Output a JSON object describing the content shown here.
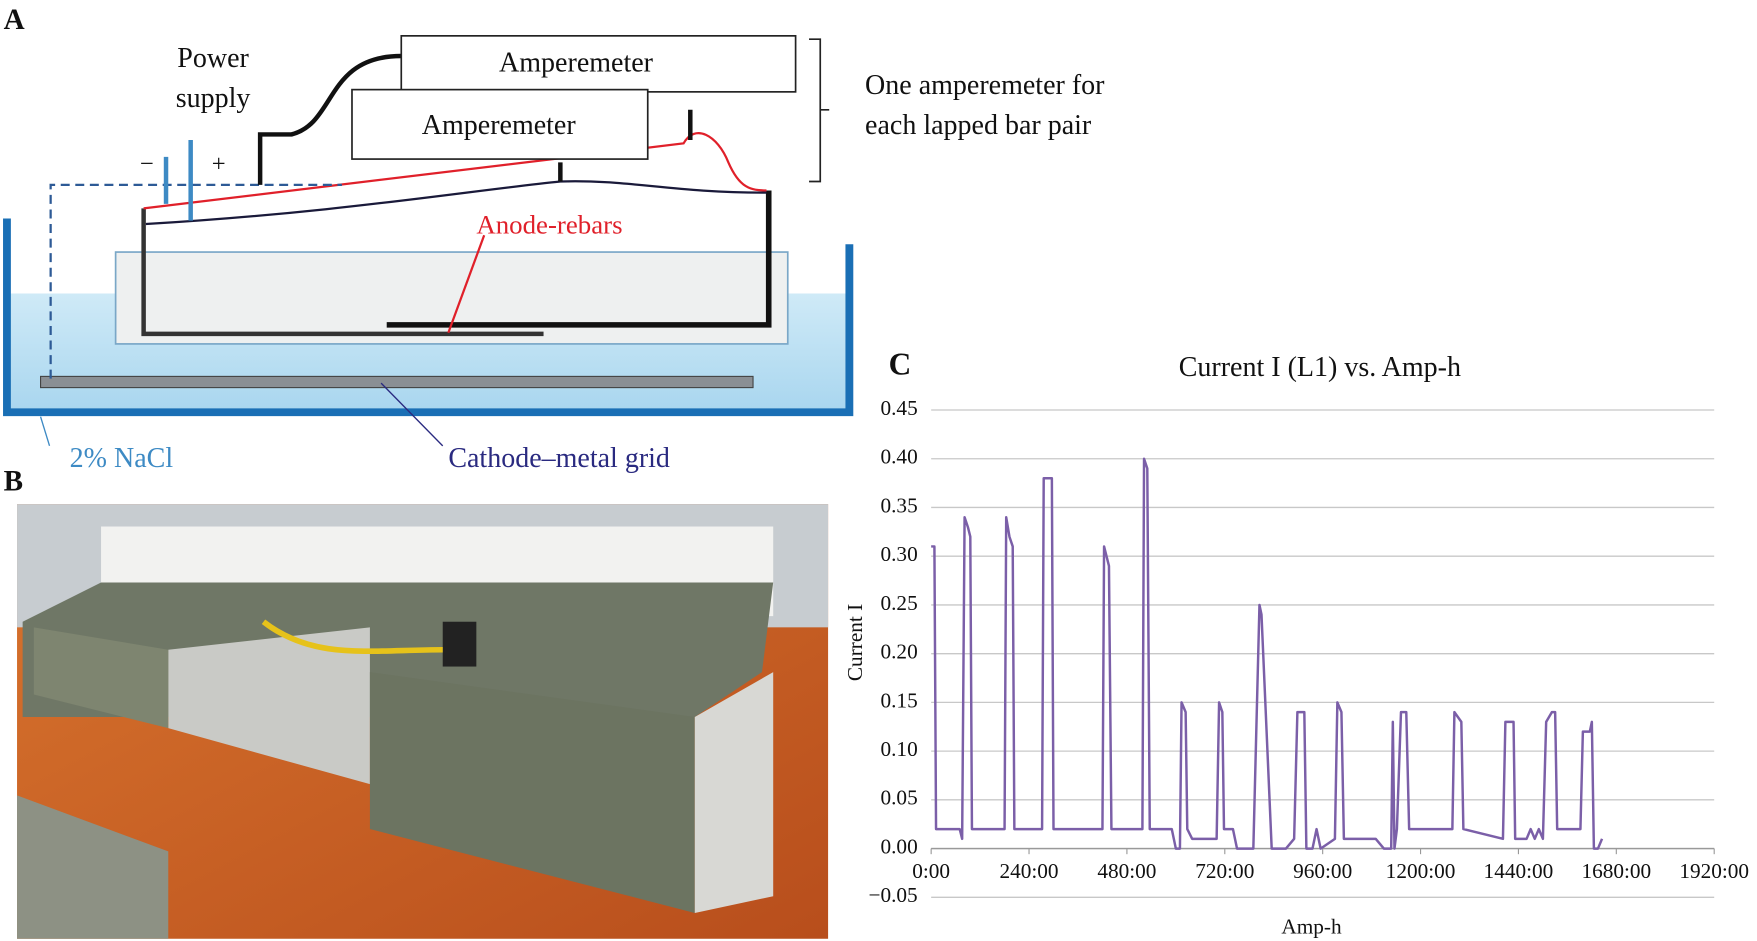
{
  "panels": {
    "a": "A",
    "b": "B"
  },
  "diagram": {
    "power_supply": [
      "Power",
      "supply"
    ],
    "minus": "−",
    "plus": "+",
    "amperemeters": [
      "Amperemeter",
      "Amperemeter"
    ],
    "note": [
      "One amperemeter for",
      "each lapped bar pair"
    ],
    "anode": "Anode-rebars",
    "solution": "2% NaCl",
    "cathode": "Cathode–metal grid"
  },
  "chart_data": {
    "type": "line",
    "panel_label": "C",
    "title": "Current I (L1) vs. Amp-h",
    "xlabel": "Amp-h",
    "ylabel": "Current I",
    "color": "#7b5fa8",
    "grid": true,
    "xlim": [
      0,
      1920
    ],
    "xticks": [
      {
        "value": 0,
        "label": "0:00"
      },
      {
        "value": 240,
        "label": "240:00"
      },
      {
        "value": 480,
        "label": "480:00"
      },
      {
        "value": 720,
        "label": "720:00"
      },
      {
        "value": 960,
        "label": "960:00"
      },
      {
        "value": 1200,
        "label": "1200:00"
      },
      {
        "value": 1440,
        "label": "1440:00"
      },
      {
        "value": 1680,
        "label": "1680:00"
      },
      {
        "value": 1920,
        "label": "1920:00"
      }
    ],
    "ylim": [
      -0.05,
      0.45
    ],
    "yticks": [
      {
        "value": -0.05,
        "label": "−0.05"
      },
      {
        "value": 0,
        "label": "0.00"
      },
      0.05,
      {
        "value": 0.1,
        "label": "0.10"
      },
      0.15,
      {
        "value": 0.2,
        "label": "0.20"
      },
      0.25,
      {
        "value": 0.3,
        "label": "0.30"
      },
      0.35,
      {
        "value": 0.4,
        "label": "0.40"
      },
      0.45
    ],
    "x": [
      0,
      8,
      12,
      70,
      76,
      82,
      90,
      96,
      100,
      180,
      184,
      192,
      200,
      204,
      272,
      276,
      296,
      300,
      420,
      424,
      436,
      442,
      518,
      522,
      530,
      536,
      590,
      600,
      610,
      614,
      624,
      628,
      640,
      700,
      706,
      714,
      718,
      740,
      750,
      790,
      805,
      810,
      835,
      870,
      890,
      898,
      915,
      920,
      935,
      945,
      955,
      990,
      996,
      1006,
      1012,
      1090,
      1110,
      1128,
      1132,
      1136,
      1142,
      1152,
      1165,
      1172,
      1278,
      1283,
      1300,
      1305,
      1402,
      1408,
      1428,
      1432,
      1460,
      1470,
      1480,
      1490,
      1500,
      1508,
      1522,
      1530,
      1535,
      1592,
      1598,
      1615,
      1620,
      1625,
      1635,
      1645
    ],
    "values": [
      0.31,
      0.31,
      0.02,
      0.02,
      0.01,
      0.34,
      0.33,
      0.32,
      0.02,
      0.02,
      0.34,
      0.32,
      0.31,
      0.02,
      0.02,
      0.38,
      0.38,
      0.02,
      0.02,
      0.31,
      0.29,
      0.02,
      0.02,
      0.4,
      0.39,
      0.02,
      0.02,
      0.0,
      0.0,
      0.15,
      0.14,
      0.02,
      0.01,
      0.01,
      0.15,
      0.14,
      0.02,
      0.02,
      0.0,
      0.0,
      0.25,
      0.24,
      0.0,
      0.0,
      0.01,
      0.14,
      0.14,
      0.0,
      0.0,
      0.02,
      0.0,
      0.01,
      0.15,
      0.14,
      0.01,
      0.01,
      0.0,
      0.0,
      0.13,
      0.0,
      0.02,
      0.14,
      0.14,
      0.02,
      0.02,
      0.14,
      0.13,
      0.02,
      0.01,
      0.13,
      0.13,
      0.01,
      0.01,
      0.02,
      0.01,
      0.02,
      0.01,
      0.13,
      0.14,
      0.14,
      0.02,
      0.02,
      0.12,
      0.12,
      0.13,
      0.0,
      0.0,
      0.01
    ]
  }
}
